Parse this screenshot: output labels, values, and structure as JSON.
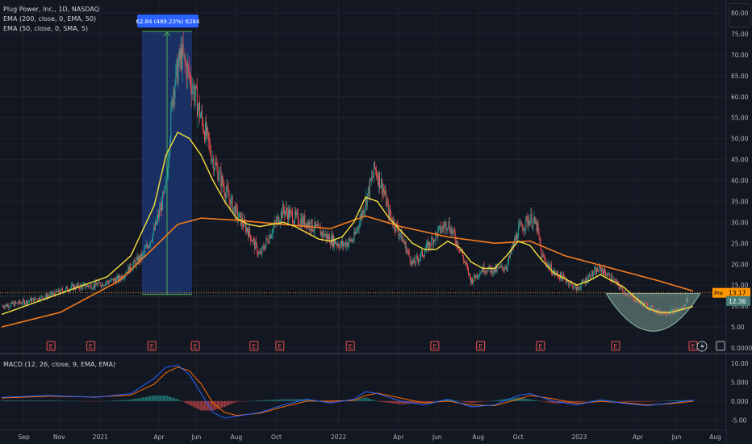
{
  "header": {
    "symbol": "Plug Power, Inc., 1D, NASDAQ",
    "ema200": "EMA (200, close, 0, EMA, 50)",
    "ema50": "EMA (50, close, 0, SMA, 5)",
    "macd_label": "MACD (12, 26, close, 9, EMA, EMA)"
  },
  "measure_label": "62.84 (489.23%) 6284",
  "price_tags": {
    "pre_label": "Pre",
    "pre_value": "13.17",
    "last_value": "12.36"
  },
  "earnings_label": "E",
  "colors": {
    "background": "#131722",
    "grid": "#1e222d",
    "up": "#26a69a",
    "down": "#ef5350",
    "ema_fast": "#f7e03c",
    "ema_slow": "#f57c1f",
    "measure_fill": "#1e3a78",
    "measure_label_bg": "#2962ff",
    "macd_line": "#2962ff",
    "signal_line": "#ff6d00",
    "pre_tag": "#ff9800",
    "last_tag": "#4a7c77",
    "bowl": "#8fb8a8"
  },
  "icons": {
    "flash": "flash-icon",
    "earnings": "earnings-flag-icon"
  },
  "chart_data": {
    "type": "candlestick",
    "x_ticks": [
      "Sep",
      "Nov",
      "2021",
      "Apr",
      "Jun",
      "Aug",
      "Oct",
      "2022",
      "Apr",
      "Jun",
      "Aug",
      "Oct",
      "2023",
      "Apr",
      "Jun",
      "Aug"
    ],
    "price_axis": {
      "ticks": [
        "80.00",
        "75.00",
        "70.00",
        "65.00",
        "60.00",
        "55.00",
        "50.00",
        "45.00",
        "40.00",
        "35.00",
        "30.00",
        "25.00",
        "20.00",
        "15.00",
        "10.00",
        "5.00",
        "0.0000"
      ],
      "ylim": [
        0,
        80
      ]
    },
    "price_series": [
      [
        0,
        10
      ],
      [
        2,
        11
      ],
      [
        4,
        12.5
      ],
      [
        6,
        14.5
      ],
      [
        8,
        15
      ],
      [
        10,
        16.5
      ],
      [
        12,
        22
      ],
      [
        13,
        28
      ],
      [
        14,
        38
      ],
      [
        14.6,
        62
      ],
      [
        15.3,
        70
      ],
      [
        16,
        65
      ],
      [
        17,
        55
      ],
      [
        18,
        45
      ],
      [
        19,
        38
      ],
      [
        20,
        32
      ],
      [
        21,
        28
      ],
      [
        22,
        22
      ],
      [
        23,
        28
      ],
      [
        24,
        33
      ],
      [
        25,
        31
      ],
      [
        26,
        30
      ],
      [
        27,
        28
      ],
      [
        28,
        26
      ],
      [
        29,
        24.5
      ],
      [
        30,
        26
      ],
      [
        31,
        35
      ],
      [
        31.8,
        43
      ],
      [
        32.5,
        38
      ],
      [
        33,
        32
      ],
      [
        34,
        27
      ],
      [
        35,
        20
      ],
      [
        36,
        23
      ],
      [
        37,
        27
      ],
      [
        38,
        30
      ],
      [
        39,
        24
      ],
      [
        40,
        16
      ],
      [
        41,
        19
      ],
      [
        42,
        18.5
      ],
      [
        43,
        19.5
      ],
      [
        44,
        28
      ],
      [
        45,
        31
      ],
      [
        45.6,
        29
      ],
      [
        46,
        22
      ],
      [
        47,
        18
      ],
      [
        48,
        16.5
      ],
      [
        49,
        14
      ],
      [
        50,
        17
      ],
      [
        51,
        19
      ],
      [
        52,
        16.5
      ],
      [
        53,
        13.5
      ],
      [
        54,
        11.5
      ],
      [
        55,
        10
      ],
      [
        56,
        8.5
      ],
      [
        57,
        8.5
      ],
      [
        58,
        9.5
      ],
      [
        58.5,
        12.4
      ]
    ],
    "ema_fast_series": [
      [
        0,
        8
      ],
      [
        3,
        11
      ],
      [
        6,
        14
      ],
      [
        9,
        17
      ],
      [
        11,
        22
      ],
      [
        13,
        34
      ],
      [
        14,
        46
      ],
      [
        15,
        51.5
      ],
      [
        16,
        50
      ],
      [
        17,
        46
      ],
      [
        18,
        40
      ],
      [
        19,
        35
      ],
      [
        20,
        31
      ],
      [
        21,
        29.5
      ],
      [
        22,
        29
      ],
      [
        23,
        29.5
      ],
      [
        24,
        30
      ],
      [
        25,
        29
      ],
      [
        26,
        27.5
      ],
      [
        27,
        26
      ],
      [
        28,
        25.5
      ],
      [
        29,
        26.5
      ],
      [
        30,
        30
      ],
      [
        31,
        36
      ],
      [
        32,
        35
      ],
      [
        33,
        31
      ],
      [
        34,
        28
      ],
      [
        35,
        25
      ],
      [
        36,
        23.5
      ],
      [
        37,
        23.5
      ],
      [
        38,
        25.5
      ],
      [
        39,
        24
      ],
      [
        40,
        20.5
      ],
      [
        41,
        19
      ],
      [
        42,
        19
      ],
      [
        43,
        22
      ],
      [
        44,
        25.5
      ],
      [
        45,
        24.5
      ],
      [
        46,
        21
      ],
      [
        47,
        18
      ],
      [
        48,
        16.5
      ],
      [
        49,
        15
      ],
      [
        50,
        16
      ],
      [
        51,
        17.5
      ],
      [
        52,
        16
      ],
      [
        53,
        14.5
      ],
      [
        54,
        12
      ],
      [
        55,
        9.5
      ],
      [
        56,
        8.5
      ],
      [
        57,
        8.5
      ],
      [
        58,
        9.2
      ],
      [
        59,
        10
      ]
    ],
    "ema_slow_series": [
      [
        0,
        5
      ],
      [
        5,
        8.5
      ],
      [
        10,
        16
      ],
      [
        13,
        24
      ],
      [
        15,
        29.5
      ],
      [
        17,
        31
      ],
      [
        20,
        30.5
      ],
      [
        24,
        29.5
      ],
      [
        28,
        28.5
      ],
      [
        31,
        31.5
      ],
      [
        34,
        29
      ],
      [
        38,
        26.5
      ],
      [
        42,
        25
      ],
      [
        45,
        25.5
      ],
      [
        48,
        22
      ],
      [
        52,
        19
      ],
      [
        56,
        16
      ],
      [
        59,
        13.5
      ]
    ],
    "levels": [
      13.17,
      12.36
    ],
    "measure": {
      "change": 62.84,
      "percent": 489.23,
      "ticks": 6284,
      "from": 12.8,
      "to": 75.6
    },
    "earnings_positions": [
      4.2,
      7.6,
      12.8,
      16.5,
      21.5,
      23.7,
      29.7,
      36.9,
      40.8,
      45.9,
      52.3,
      58.9,
      64.8
    ],
    "macd": {
      "ticks": [
        "10.00",
        "5.000",
        "0.000",
        "-5.00"
      ],
      "ylim": [
        -7.5,
        11.5
      ],
      "macd_series": [
        [
          0,
          1
        ],
        [
          4,
          1.5
        ],
        [
          8,
          1
        ],
        [
          11,
          2
        ],
        [
          13,
          6
        ],
        [
          14,
          9
        ],
        [
          15,
          9.5
        ],
        [
          16,
          7
        ],
        [
          17,
          2
        ],
        [
          18,
          -3
        ],
        [
          19,
          -4.5
        ],
        [
          20,
          -4
        ],
        [
          22,
          -3
        ],
        [
          24,
          -1
        ],
        [
          26,
          0.5
        ],
        [
          28,
          -0.5
        ],
        [
          30,
          0.5
        ],
        [
          31,
          2.5
        ],
        [
          32,
          2
        ],
        [
          34,
          0
        ],
        [
          36,
          -1
        ],
        [
          38,
          0.5
        ],
        [
          40,
          -1.5
        ],
        [
          42,
          -1
        ],
        [
          44,
          1.5
        ],
        [
          45,
          2
        ],
        [
          47,
          0
        ],
        [
          49,
          -1
        ],
        [
          51,
          0.3
        ],
        [
          53,
          -0.6
        ],
        [
          55,
          -1.2
        ],
        [
          57,
          -0.5
        ],
        [
          59,
          0.3
        ]
      ],
      "signal_series": [
        [
          0,
          0.8
        ],
        [
          4,
          1.3
        ],
        [
          8,
          1.1
        ],
        [
          11,
          1.6
        ],
        [
          13,
          4.5
        ],
        [
          14,
          7.5
        ],
        [
          15,
          9
        ],
        [
          16,
          8
        ],
        [
          17,
          4.5
        ],
        [
          18,
          -0.5
        ],
        [
          19,
          -3
        ],
        [
          20,
          -3.8
        ],
        [
          22,
          -3.2
        ],
        [
          24,
          -1.5
        ],
        [
          26,
          0
        ],
        [
          28,
          0
        ],
        [
          30,
          0.2
        ],
        [
          31,
          1.5
        ],
        [
          32,
          2.1
        ],
        [
          34,
          0.8
        ],
        [
          36,
          -0.5
        ],
        [
          38,
          0
        ],
        [
          40,
          -1
        ],
        [
          42,
          -1.2
        ],
        [
          44,
          0.5
        ],
        [
          45,
          1.5
        ],
        [
          47,
          0.6
        ],
        [
          49,
          -0.6
        ],
        [
          51,
          -0.1
        ],
        [
          53,
          -0.4
        ],
        [
          55,
          -1
        ],
        [
          57,
          -0.7
        ],
        [
          59,
          0
        ]
      ]
    }
  }
}
